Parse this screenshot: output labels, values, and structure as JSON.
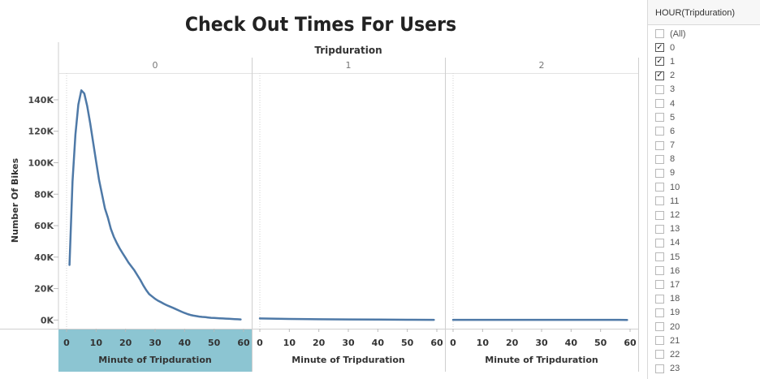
{
  "chart_data": {
    "type": "line",
    "title": "Check Out Times For Users",
    "column_header": "Tripduration",
    "panels": [
      {
        "label": "0",
        "x": [
          1,
          2,
          3,
          4,
          5,
          6,
          7,
          8,
          9,
          10,
          11,
          12,
          13,
          14,
          15,
          16,
          17,
          18,
          19,
          20,
          21,
          22,
          23,
          24,
          25,
          26,
          27,
          28,
          29,
          30,
          31,
          32,
          33,
          34,
          35,
          36,
          37,
          38,
          39,
          40,
          41,
          42,
          43,
          44,
          45,
          46,
          47,
          48,
          49,
          50,
          51,
          52,
          53,
          54,
          55,
          56,
          57,
          58,
          59
        ],
        "y": [
          35000,
          88000,
          118000,
          137000,
          146000,
          144000,
          136000,
          125000,
          113000,
          101000,
          89000,
          80000,
          71000,
          65000,
          58000,
          53000,
          49000,
          45500,
          42500,
          39500,
          36500,
          34000,
          31500,
          28500,
          25500,
          22000,
          19000,
          16500,
          15000,
          13500,
          12300,
          11300,
          10300,
          9400,
          8600,
          7800,
          7000,
          6100,
          5300,
          4500,
          3800,
          3200,
          2800,
          2500,
          2200,
          2000,
          1800,
          1600,
          1400,
          1300,
          1200,
          1100,
          1000,
          900,
          800,
          700,
          600,
          500,
          400
        ]
      },
      {
        "label": "1",
        "x": [
          0,
          10,
          20,
          30,
          40,
          50,
          59
        ],
        "y": [
          1000,
          700,
          500,
          400,
          300,
          200,
          100
        ]
      },
      {
        "label": "2",
        "x": [
          0,
          10,
          20,
          30,
          40,
          50,
          59
        ],
        "y": [
          100,
          100,
          100,
          100,
          100,
          100,
          50
        ]
      }
    ],
    "xlabel": "Minute of Tripduration",
    "ylabel": "Number Of Bikes",
    "xticks": [
      0,
      10,
      20,
      30,
      40,
      50,
      60
    ],
    "xlim": [
      0,
      60
    ],
    "yticks": [
      0,
      20000,
      40000,
      60000,
      80000,
      100000,
      120000,
      140000
    ],
    "ytick_labels": [
      "0K",
      "20K",
      "40K",
      "60K",
      "80K",
      "100K",
      "120K",
      "140K"
    ],
    "ylim": [
      -5500,
      157000
    ],
    "colors": {
      "line": "#4e79a7",
      "highlight": "#8cc5d2"
    },
    "highlighted_panel": "0"
  },
  "filter": {
    "title": "HOUR(Tripduration)",
    "items": [
      {
        "label": "(All)",
        "checked": false
      },
      {
        "label": "0",
        "checked": true
      },
      {
        "label": "1",
        "checked": true
      },
      {
        "label": "2",
        "checked": true
      },
      {
        "label": "3",
        "checked": false
      },
      {
        "label": "4",
        "checked": false
      },
      {
        "label": "5",
        "checked": false
      },
      {
        "label": "6",
        "checked": false
      },
      {
        "label": "7",
        "checked": false
      },
      {
        "label": "8",
        "checked": false
      },
      {
        "label": "9",
        "checked": false
      },
      {
        "label": "10",
        "checked": false
      },
      {
        "label": "11",
        "checked": false
      },
      {
        "label": "12",
        "checked": false
      },
      {
        "label": "13",
        "checked": false
      },
      {
        "label": "14",
        "checked": false
      },
      {
        "label": "15",
        "checked": false
      },
      {
        "label": "16",
        "checked": false
      },
      {
        "label": "17",
        "checked": false
      },
      {
        "label": "18",
        "checked": false
      },
      {
        "label": "19",
        "checked": false
      },
      {
        "label": "20",
        "checked": false
      },
      {
        "label": "21",
        "checked": false
      },
      {
        "label": "22",
        "checked": false
      },
      {
        "label": "23",
        "checked": false
      }
    ]
  }
}
